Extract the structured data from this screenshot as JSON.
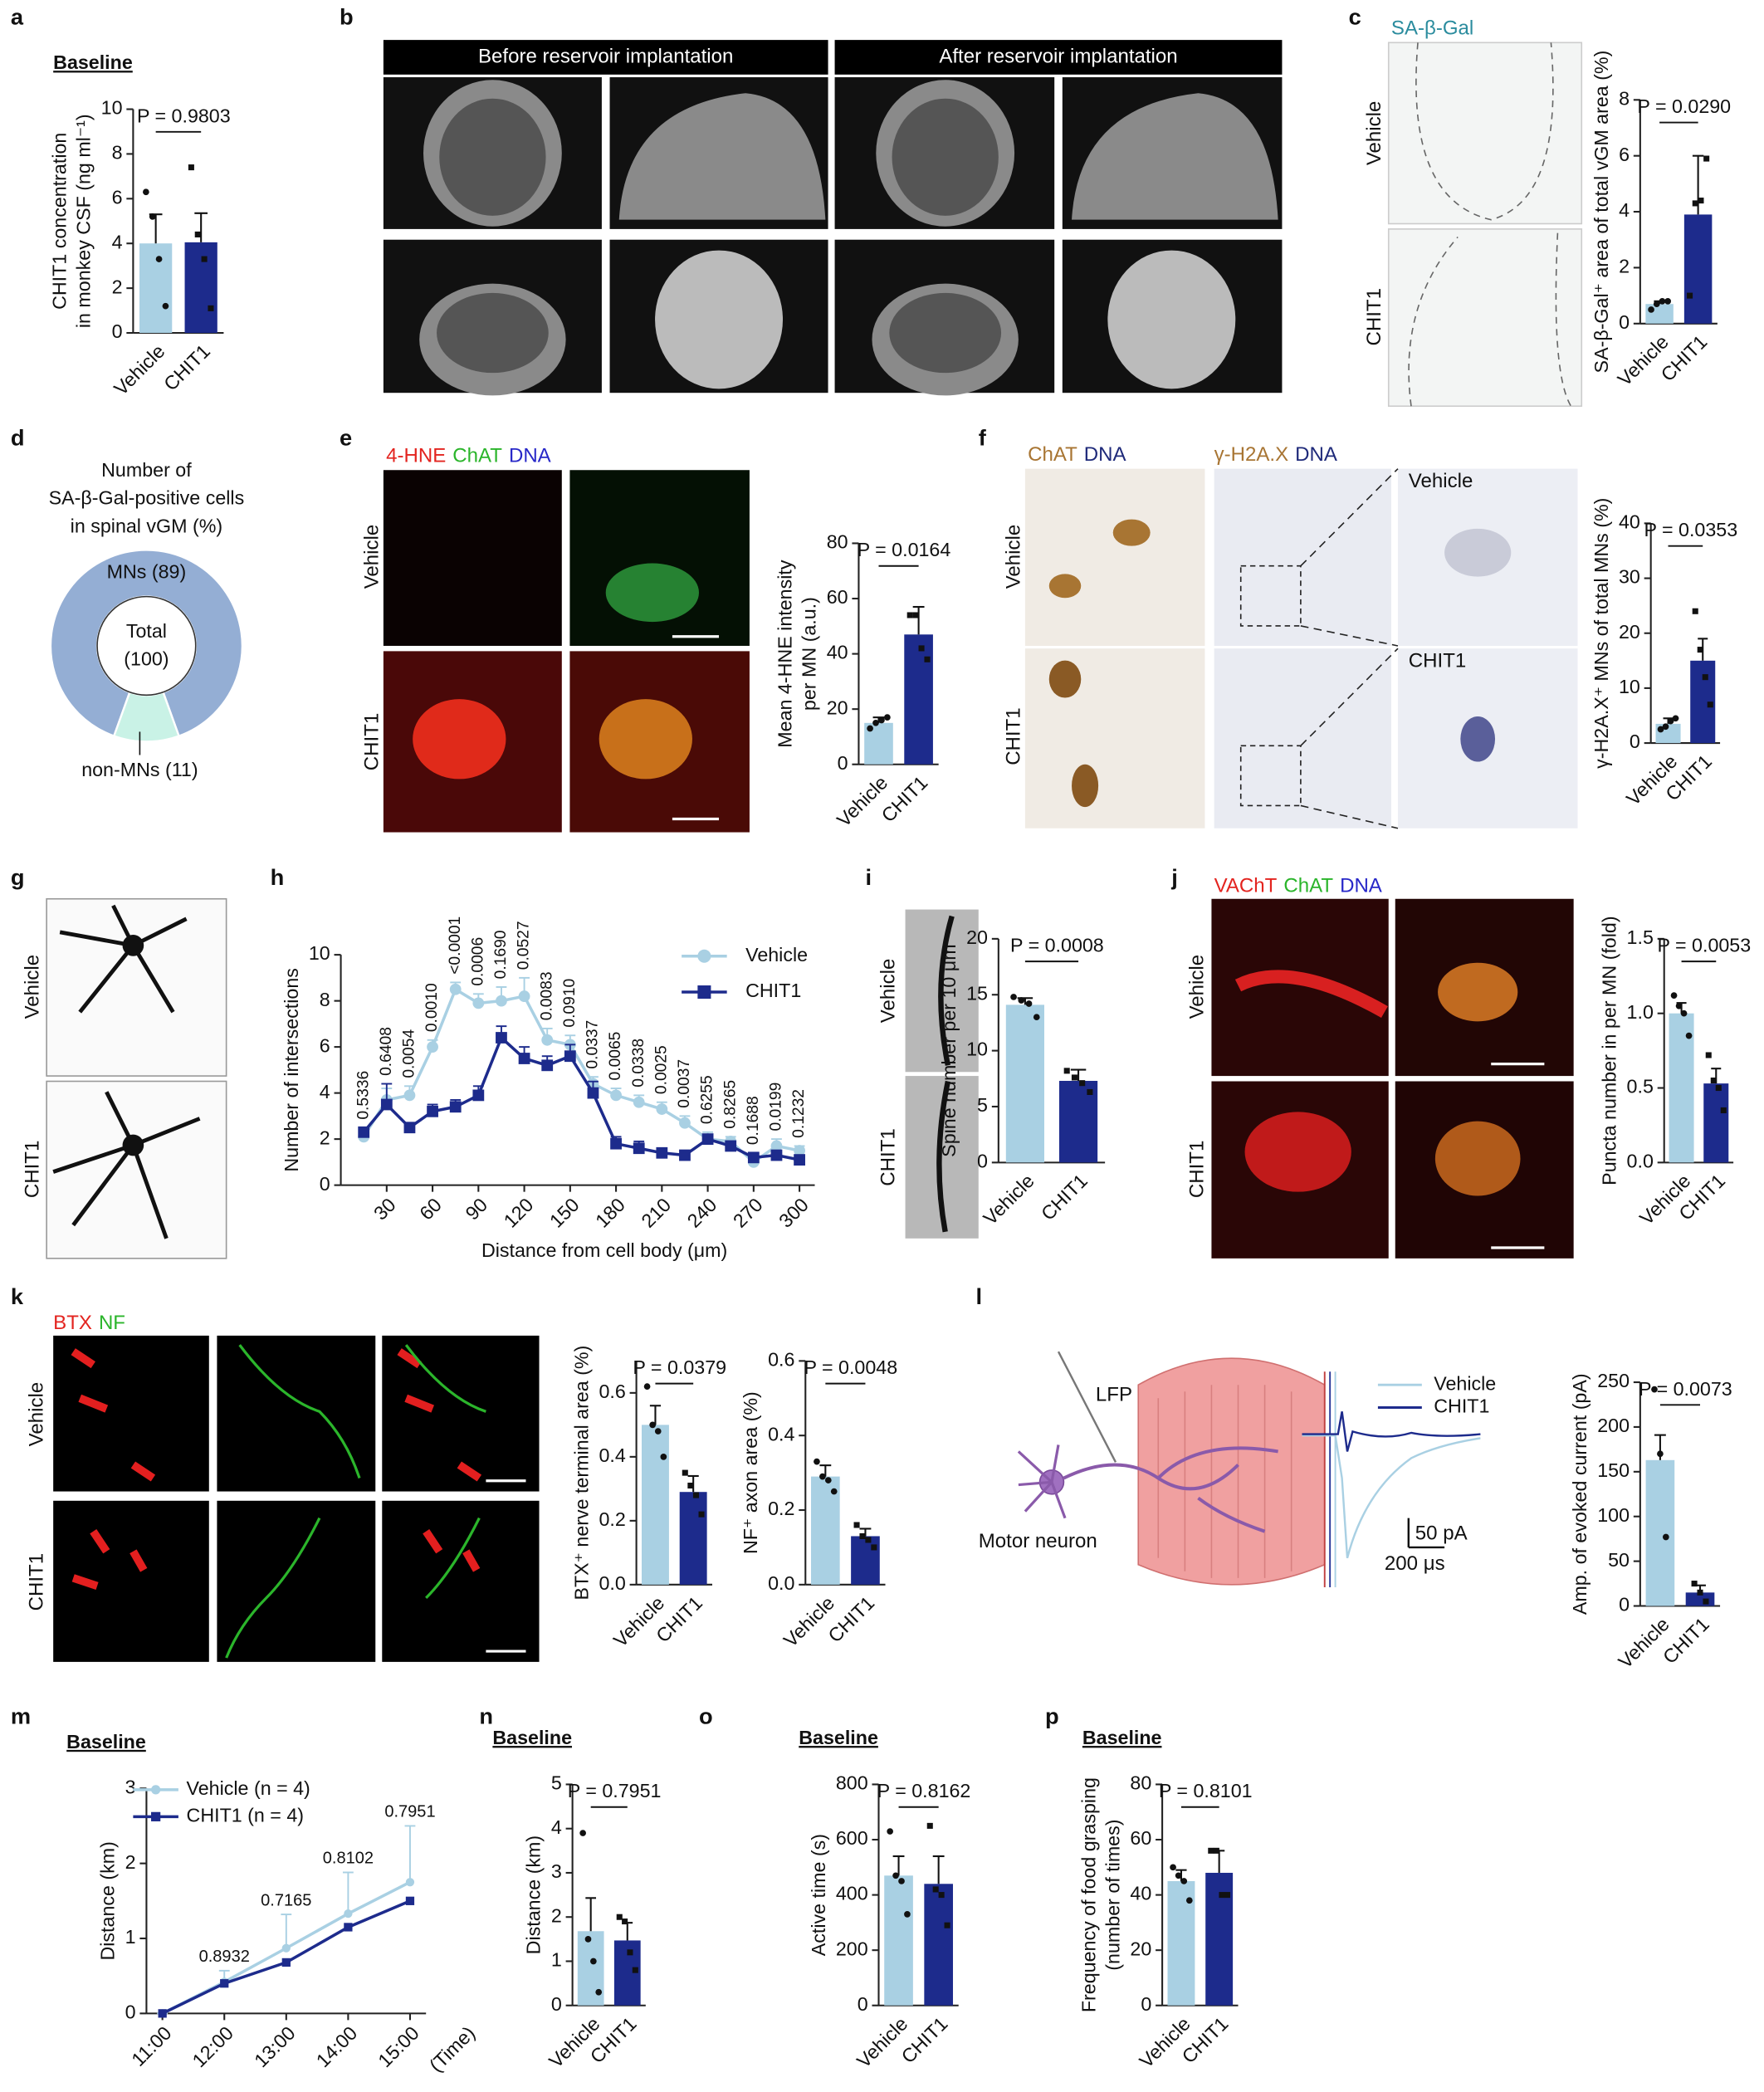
{
  "figure": {
    "panel_labels": [
      "a",
      "b",
      "c",
      "d",
      "e",
      "f",
      "g",
      "h",
      "i",
      "j",
      "k",
      "l",
      "m",
      "n",
      "o",
      "p"
    ],
    "b": {
      "headers": [
        "Before reservoir implantation",
        "After reservoir implantation"
      ]
    },
    "c": {
      "stain_groups": [
        {
          "labels": [
            "SA-β-Gal"
          ],
          "colors": [
            "#2b8c9e"
          ]
        }
      ],
      "rows": [
        "Vehicle",
        "CHIT1"
      ]
    },
    "e": {
      "stain_groups": [
        {
          "labels": [
            "4-HNE",
            "ChAT",
            "DNA"
          ],
          "colors": [
            "#e3241f",
            "#2bb52b",
            "#2828c8"
          ]
        }
      ],
      "rows": [
        "Vehicle",
        "CHIT1"
      ]
    },
    "f": {
      "stain_groups": [
        {
          "labels": [
            "ChAT",
            "DNA"
          ],
          "colors": [
            "#a87533",
            "#1f2a7a"
          ]
        },
        {
          "labels": [
            "γ-H2A.X",
            "DNA"
          ],
          "colors": [
            "#a87533",
            "#1f2a7a"
          ]
        }
      ],
      "rows": [
        "Vehicle",
        "CHIT1"
      ],
      "insets": [
        "Vehicle",
        "CHIT1"
      ]
    },
    "g": {
      "rows": [
        "Vehicle",
        "CHIT1"
      ]
    },
    "i": {
      "rows": [
        "Vehicle",
        "CHIT1"
      ]
    },
    "j": {
      "stain_groups": [
        {
          "labels": [
            "VAChT",
            "ChAT",
            "DNA"
          ],
          "colors": [
            "#e3241f",
            "#2bb52b",
            "#2828c8"
          ]
        }
      ],
      "rows": [
        "Vehicle",
        "CHIT1"
      ]
    },
    "k": {
      "stain_groups": [
        {
          "labels": [
            "BTX",
            "NF"
          ],
          "colors": [
            "#e3241f",
            "#2bb52b"
          ]
        }
      ],
      "rows": [
        "Vehicle",
        "CHIT1"
      ]
    },
    "l": {
      "probe": "LFP",
      "cell": "Motor neuron",
      "legend": [
        {
          "name": "Vehicle",
          "color": "#a9d0e3"
        },
        {
          "name": "CHIT1",
          "color": "#1d2b8c"
        }
      ],
      "scale": [
        "50 pA",
        "200 μs"
      ]
    }
  },
  "chart_data": [
    {
      "type": "bar",
      "title": "Baseline",
      "ylabel": [
        "CHIT1 concentration",
        "in monkey CSF (ng ml⁻¹)"
      ],
      "categories": [
        "Vehicle",
        "CHIT1"
      ],
      "values": [
        4.0,
        4.05
      ],
      "errors": [
        1.3,
        1.3
      ],
      "points": [
        [
          6.3,
          5.2,
          3.3,
          1.2
        ],
        [
          7.4,
          4.4,
          3.3,
          1.1
        ]
      ],
      "colors": [
        "#a9d0e3",
        "#1d2b8c"
      ],
      "ylim": [
        0,
        10
      ],
      "yticks": [
        0,
        2,
        4,
        6,
        8,
        10
      ],
      "p_label": "P = 0.9803"
    },
    {
      "type": "bar",
      "ylabel": [
        "SA-β-Gal⁺ area of total vGM area (%)"
      ],
      "categories": [
        "Vehicle",
        "CHIT1"
      ],
      "values": [
        0.7,
        3.9
      ],
      "errors": [
        0.1,
        2.1
      ],
      "points": [
        [
          0.5,
          0.7,
          0.8,
          0.8
        ],
        [
          1.0,
          4.3,
          4.4,
          5.9
        ]
      ],
      "colors": [
        "#a9d0e3",
        "#1d2b8c"
      ],
      "ylim": [
        0,
        8
      ],
      "yticks": [
        0,
        2,
        4,
        6,
        8
      ],
      "p_label": "P = 0.0290"
    },
    {
      "type": "pie",
      "title": [
        "Number of",
        "SA-β-Gal-positive cells",
        "in spinal vGM (%)"
      ],
      "categories": [
        "MNs",
        "non-MNs"
      ],
      "values": [
        89,
        11
      ],
      "value_labels": [
        "MNs (89)",
        "non-MNs (11)"
      ],
      "center_label": [
        "Total",
        "(100)"
      ],
      "colors": [
        "#94aed4",
        "#c9f2e6"
      ]
    },
    {
      "type": "bar",
      "ylabel": [
        "Mean 4-HNE intensity",
        "per MN (a.u.)"
      ],
      "categories": [
        "Vehicle",
        "CHIT1"
      ],
      "values": [
        15,
        47
      ],
      "errors": [
        2,
        10
      ],
      "points": [
        [
          13,
          15,
          16,
          17
        ],
        [
          54,
          54,
          42,
          38
        ]
      ],
      "colors": [
        "#a9d0e3",
        "#1d2b8c"
      ],
      "ylim": [
        0,
        80
      ],
      "yticks": [
        0,
        20,
        40,
        60,
        80
      ],
      "p_label": "P = 0.0164"
    },
    {
      "type": "bar",
      "ylabel": [
        "γ-H2A.X⁺ MNs of total MNs (%)"
      ],
      "categories": [
        "Vehicle",
        "CHIT1"
      ],
      "values": [
        3.5,
        15
      ],
      "errors": [
        1,
        4
      ],
      "points": [
        [
          2.5,
          3,
          4,
          4.5
        ],
        [
          24,
          17,
          12,
          7
        ]
      ],
      "colors": [
        "#a9d0e3",
        "#1d2b8c"
      ],
      "ylim": [
        0,
        40
      ],
      "yticks": [
        0,
        10,
        20,
        30,
        40
      ],
      "p_label": "P = 0.0353"
    },
    {
      "type": "line",
      "xlabel": "Distance from cell body (μm)",
      "ylabel": [
        "Number of intersections"
      ],
      "x": [
        15,
        30,
        45,
        60,
        75,
        90,
        105,
        120,
        135,
        150,
        165,
        180,
        195,
        210,
        225,
        240,
        255,
        270,
        285,
        300
      ],
      "series": [
        {
          "name": "Vehicle",
          "color": "#a9d0e3",
          "marker": "circle",
          "values": [
            2.1,
            3.7,
            3.9,
            6.0,
            8.5,
            7.9,
            8.0,
            8.2,
            6.3,
            6.1,
            4.4,
            3.9,
            3.6,
            3.3,
            2.7,
            2.0,
            1.9,
            1.0,
            1.7,
            1.5
          ],
          "errors": [
            0.2,
            0.5,
            0.4,
            0.3,
            0.3,
            0.4,
            0.6,
            0.8,
            0.5,
            0.4,
            0.3,
            0.3,
            0.3,
            0.3,
            0.3,
            0.3,
            0.2,
            0.2,
            0.3,
            0.2
          ]
        },
        {
          "name": "CHIT1",
          "color": "#1d2b8c",
          "marker": "square",
          "values": [
            2.3,
            3.5,
            2.5,
            3.2,
            3.4,
            3.9,
            6.4,
            5.5,
            5.2,
            5.6,
            4.0,
            1.8,
            1.6,
            1.4,
            1.3,
            2.0,
            1.7,
            1.2,
            1.3,
            1.1
          ],
          "errors": [
            0.2,
            0.9,
            0.2,
            0.3,
            0.3,
            0.4,
            0.5,
            0.5,
            0.4,
            0.5,
            0.5,
            0.3,
            0.3,
            0.2,
            0.2,
            0.2,
            0.2,
            0.2,
            0.2,
            0.2
          ]
        }
      ],
      "point_labels": [
        "0.5336",
        "0.6408",
        "0.0054",
        "0.0010",
        "<0.0001",
        "0.0006",
        "0.1690",
        "0.0527",
        "0.0083",
        "0.0910",
        "0.0337",
        "0.0065",
        "0.0338",
        "0.0025",
        "0.0037",
        "0.6255",
        "0.8265",
        "0.1688",
        "0.0199",
        "0.1232"
      ],
      "xlim": [
        0,
        310
      ],
      "xticks": [
        30,
        60,
        90,
        120,
        150,
        180,
        210,
        240,
        270,
        300
      ],
      "ylim": [
        0,
        10
      ],
      "yticks": [
        0,
        2,
        4,
        6,
        8,
        10
      ],
      "legend": "upper right"
    },
    {
      "type": "bar",
      "ylabel": [
        "Spine number per 10 μm"
      ],
      "categories": [
        "Vehicle",
        "CHIT1"
      ],
      "values": [
        14.1,
        7.3
      ],
      "errors": [
        0.6,
        1.0
      ],
      "points": [
        [
          14.8,
          14.5,
          14.2,
          13.0
        ],
        [
          8.2,
          7.6,
          7.1,
          6.3
        ]
      ],
      "colors": [
        "#a9d0e3",
        "#1d2b8c"
      ],
      "ylim": [
        0,
        20
      ],
      "yticks": [
        0,
        5,
        10,
        15,
        20
      ],
      "p_label": "P = 0.0008"
    },
    {
      "type": "bar",
      "ylabel": [
        "Puncta number in per MN (fold)"
      ],
      "categories": [
        "Vehicle",
        "CHIT1"
      ],
      "values": [
        1.0,
        0.53
      ],
      "errors": [
        0.07,
        0.1
      ],
      "points": [
        [
          1.12,
          1.05,
          1.0,
          0.85
        ],
        [
          0.72,
          0.55,
          0.5,
          0.35
        ]
      ],
      "colors": [
        "#a9d0e3",
        "#1d2b8c"
      ],
      "ylim": [
        0,
        1.5
      ],
      "yticks": [
        {
          "value": 0,
          "label": "0.0"
        },
        0.5,
        {
          "value": 1,
          "label": "1.0"
        },
        1.5
      ],
      "p_label": "P = 0.0053"
    },
    {
      "type": "bar",
      "ylabel": [
        "BTX⁺ nerve terminal area (%)"
      ],
      "categories": [
        "Vehicle",
        "CHIT1"
      ],
      "values": [
        0.5,
        0.29
      ],
      "errors": [
        0.06,
        0.05
      ],
      "points": [
        [
          0.62,
          0.5,
          0.48,
          0.4
        ],
        [
          0.35,
          0.31,
          0.28,
          0.22
        ]
      ],
      "colors": [
        "#a9d0e3",
        "#1d2b8c"
      ],
      "ylim": [
        0,
        0.7
      ],
      "yticks": [
        {
          "value": 0,
          "label": "0.0"
        },
        0.2,
        0.4,
        0.6
      ],
      "p_label": "P = 0.0379"
    },
    {
      "type": "bar",
      "ylabel": [
        "NF⁺ axon area (%)"
      ],
      "categories": [
        "Vehicle",
        "CHIT1"
      ],
      "values": [
        0.29,
        0.13
      ],
      "errors": [
        0.03,
        0.02
      ],
      "points": [
        [
          0.33,
          0.29,
          0.28,
          0.25
        ],
        [
          0.16,
          0.13,
          0.12,
          0.1
        ]
      ],
      "colors": [
        "#a9d0e3",
        "#1d2b8c"
      ],
      "ylim": [
        0,
        0.6
      ],
      "yticks": [
        {
          "value": 0,
          "label": "0.0"
        },
        0.2,
        0.4,
        0.6
      ],
      "p_label": "P = 0.0048"
    },
    {
      "type": "bar",
      "ylabel": [
        "Amp. of evoked current (pA)"
      ],
      "categories": [
        "Vehicle",
        "CHIT1"
      ],
      "values": [
        163,
        15
      ],
      "errors": [
        28,
        8
      ],
      "points": [
        [
          242,
          170,
          77
        ],
        [
          25,
          15,
          5
        ]
      ],
      "colors": [
        "#a9d0e3",
        "#1d2b8c"
      ],
      "ylim": [
        0,
        250
      ],
      "yticks": [
        0,
        50,
        100,
        150,
        200,
        250
      ],
      "p_label": "P = 0.0073"
    },
    {
      "type": "line",
      "title": "Baseline",
      "xlabel": "(Time)",
      "ylabel": [
        "Distance (km)"
      ],
      "categories": [
        "11:00",
        "12:00",
        "13:00",
        "14:00",
        "15:00"
      ],
      "series": [
        {
          "name": "Vehicle (n = 4)",
          "color": "#a9d0e3",
          "marker": "circle",
          "values": [
            0,
            0.42,
            0.87,
            1.33,
            1.75
          ],
          "errors": [
            0,
            0.15,
            0.45,
            0.55,
            0.75
          ]
        },
        {
          "name": "CHIT1 (n = 4)",
          "color": "#1d2b8c",
          "marker": "square",
          "values": [
            0,
            0.4,
            0.68,
            1.15,
            1.5
          ]
        }
      ],
      "point_labels": [
        null,
        "0.8932",
        "0.7165",
        "0.8102",
        "0.7951"
      ],
      "ylim": [
        0,
        3
      ],
      "yticks": [
        0,
        1,
        2,
        3
      ],
      "legend": "upper left"
    },
    {
      "type": "bar",
      "title": "Baseline",
      "ylabel": [
        "Distance (km)"
      ],
      "categories": [
        "Vehicle",
        "CHIT1"
      ],
      "values": [
        1.68,
        1.47
      ],
      "errors": [
        0.75,
        0.4
      ],
      "points": [
        [
          3.9,
          1.5,
          1.0,
          0.3
        ],
        [
          2.0,
          1.9,
          1.2,
          0.8
        ]
      ],
      "colors": [
        "#a9d0e3",
        "#1d2b8c"
      ],
      "ylim": [
        0,
        5
      ],
      "yticks": [
        0,
        1,
        2,
        3,
        4,
        5
      ],
      "p_label": "P = 0.7951"
    },
    {
      "type": "bar",
      "title": "Baseline",
      "ylabel": [
        "Active time (s)"
      ],
      "categories": [
        "Vehicle",
        "CHIT1"
      ],
      "values": [
        470,
        440
      ],
      "errors": [
        70,
        100
      ],
      "points": [
        [
          630,
          470,
          450,
          330
        ],
        [
          650,
          420,
          400,
          290
        ]
      ],
      "colors": [
        "#a9d0e3",
        "#1d2b8c"
      ],
      "ylim": [
        0,
        800
      ],
      "yticks": [
        0,
        200,
        400,
        600,
        800
      ],
      "p_label": "P = 0.8162"
    },
    {
      "type": "bar",
      "title": "Baseline",
      "ylabel": [
        "Frequency of food grasping",
        "(number of times)"
      ],
      "categories": [
        "Vehicle",
        "CHIT1"
      ],
      "values": [
        45,
        48
      ],
      "errors": [
        4,
        8
      ],
      "points": [
        [
          50,
          47,
          45,
          38
        ],
        [
          56,
          56,
          40,
          40
        ]
      ],
      "colors": [
        "#a9d0e3",
        "#1d2b8c"
      ],
      "ylim": [
        0,
        80
      ],
      "yticks": [
        0,
        20,
        40,
        60,
        80
      ],
      "p_label": "P = 0.8101"
    }
  ]
}
